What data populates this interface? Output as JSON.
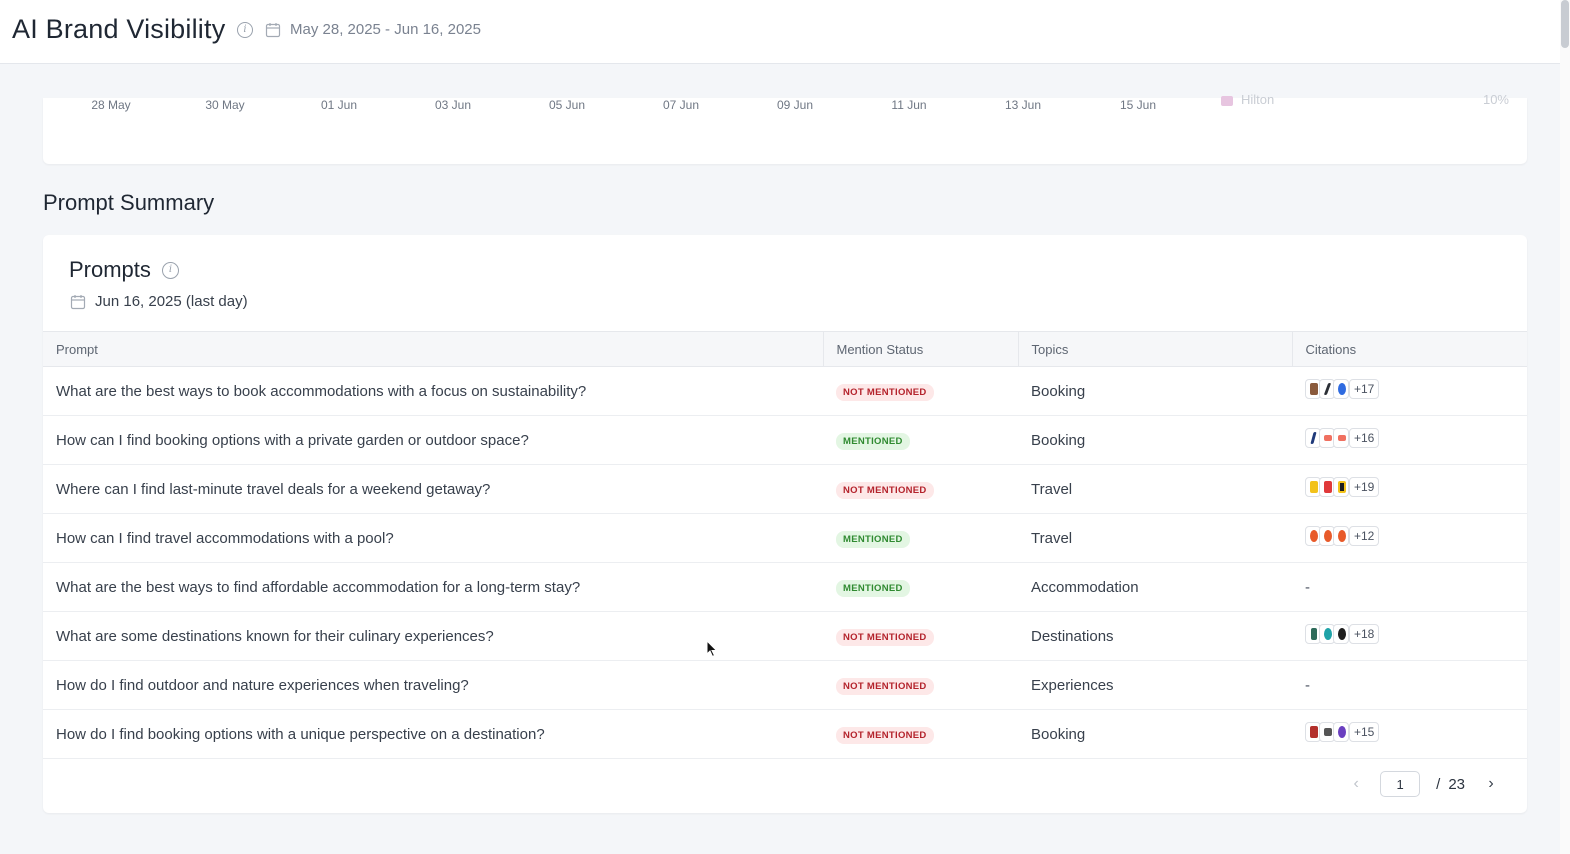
{
  "header": {
    "title": "AI Brand Visibility",
    "date_range": "May 28, 2025 - Jun 16, 2025"
  },
  "chart_strip": {
    "x_ticks": [
      "28 May",
      "30 May",
      "01 Jun",
      "03 Jun",
      "05 Jun",
      "07 Jun",
      "09 Jun",
      "11 Jun",
      "13 Jun",
      "15 Jun"
    ],
    "legend_partial": "Hilton",
    "value_partial": "10%"
  },
  "section": {
    "title": "Prompt Summary"
  },
  "prompts_card": {
    "title": "Prompts",
    "date": "Jun 16, 2025 (last day)",
    "columns": {
      "prompt": "Prompt",
      "mention_status": "Mention Status",
      "topics": "Topics",
      "citations": "Citations"
    },
    "rows": [
      {
        "prompt": "What are the best ways to book accommodations with a focus on sustainability?",
        "status": "NOT MENTIONED",
        "topic": "Booking",
        "citations": "+17"
      },
      {
        "prompt": "How can I find booking options with a private garden or outdoor space?",
        "status": "MENTIONED",
        "topic": "Booking",
        "citations": "+16"
      },
      {
        "prompt": "Where can I find last-minute travel deals for a weekend getaway?",
        "status": "NOT MENTIONED",
        "topic": "Travel",
        "citations": "+19"
      },
      {
        "prompt": "How can I find travel accommodations with a pool?",
        "status": "MENTIONED",
        "topic": "Travel",
        "citations": "+12"
      },
      {
        "prompt": "What are the best ways to find affordable accommodation for a long-term stay?",
        "status": "MENTIONED",
        "topic": "Accommodation",
        "citations": "-"
      },
      {
        "prompt": "What are some destinations known for their culinary experiences?",
        "status": "NOT MENTIONED",
        "topic": "Destinations",
        "citations": "+18"
      },
      {
        "prompt": "How do I find outdoor and nature experiences when traveling?",
        "status": "NOT MENTIONED",
        "topic": "Experiences",
        "citations": "-"
      },
      {
        "prompt": "How do I find booking options with a unique perspective on a destination?",
        "status": "NOT MENTIONED",
        "topic": "Booking",
        "citations": "+15"
      }
    ],
    "pagination": {
      "current": "1",
      "separator": "/",
      "total": "23"
    }
  }
}
